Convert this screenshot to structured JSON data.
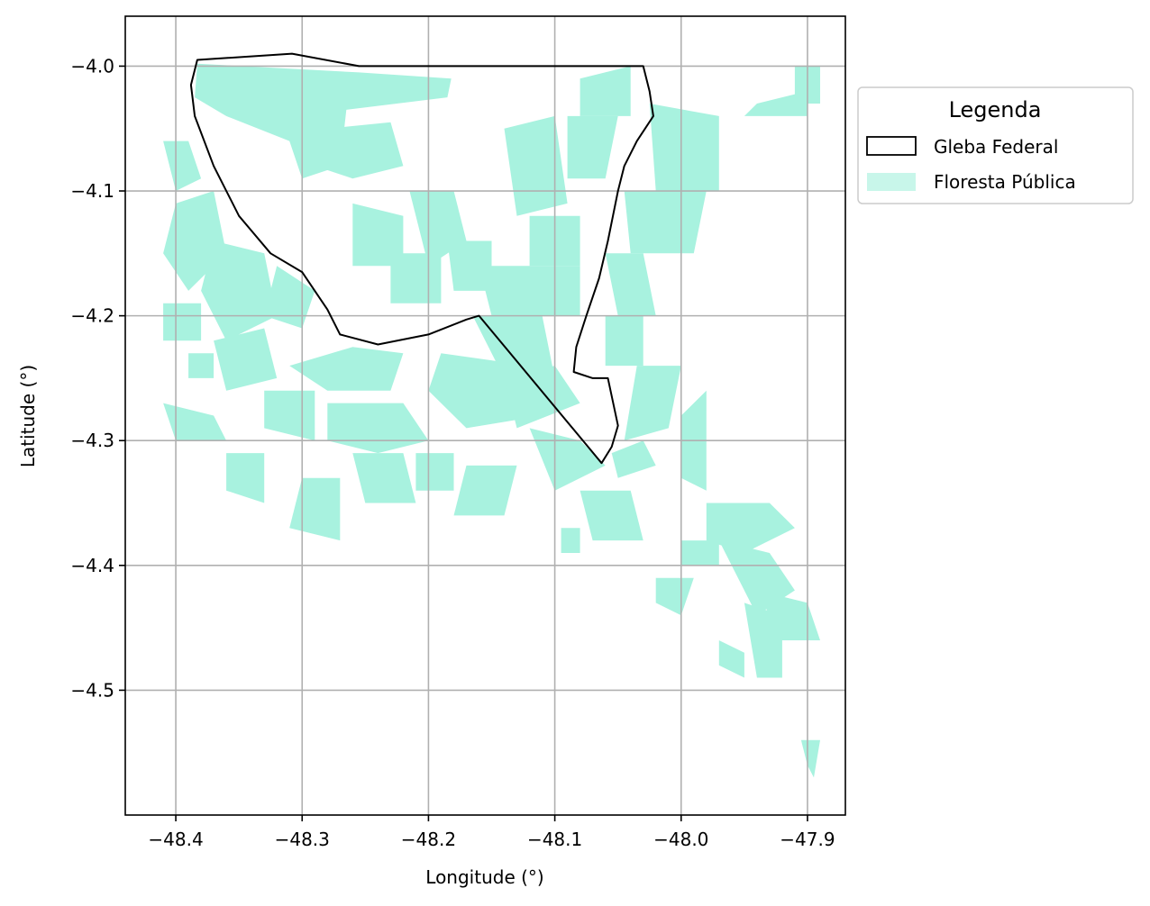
{
  "chart_data": {
    "type": "map",
    "xlabel": "Longitude (°)",
    "ylabel": "Latitude (°)",
    "xlim": [
      -48.44,
      -47.87
    ],
    "ylim": [
      -4.6,
      -3.96
    ],
    "x_ticks": [
      -48.4,
      -48.3,
      -48.2,
      -48.1,
      -48.0,
      -47.9
    ],
    "x_tick_labels": [
      "−48.4",
      "−48.3",
      "−48.2",
      "−48.1",
      "−48.0",
      "−47.9"
    ],
    "y_ticks": [
      -4.0,
      -4.1,
      -4.2,
      -4.3,
      -4.4,
      -4.5
    ],
    "y_tick_labels": [
      "−4.0",
      "−4.1",
      "−4.2",
      "−4.3",
      "−4.4",
      "−4.5"
    ],
    "grid": true,
    "legend": {
      "title": "Legenda",
      "placement": "outside-right-top",
      "entries": [
        {
          "label": "Gleba Federal",
          "style": "outline",
          "edge_color": "#000000",
          "fill": "none"
        },
        {
          "label": "Floresta Pública",
          "style": "fill",
          "fill": "#a8f2df"
        }
      ]
    },
    "colors": {
      "forest": "#a8f2df",
      "boundary": "#000000",
      "grid": "#b0b0b0"
    },
    "gleba_federal": [
      [
        -48.383,
        -3.995
      ],
      [
        -48.308,
        -3.99
      ],
      [
        -48.255,
        -4.0
      ],
      [
        -48.03,
        -4.0
      ],
      [
        -48.025,
        -4.02
      ],
      [
        -48.022,
        -4.04
      ],
      [
        -48.035,
        -4.06
      ],
      [
        -48.045,
        -4.08
      ],
      [
        -48.05,
        -4.1
      ],
      [
        -48.058,
        -4.14
      ],
      [
        -48.065,
        -4.17
      ],
      [
        -48.075,
        -4.2
      ],
      [
        -48.083,
        -4.225
      ],
      [
        -48.085,
        -4.245
      ],
      [
        -48.07,
        -4.25
      ],
      [
        -48.058,
        -4.25
      ],
      [
        -48.05,
        -4.288
      ],
      [
        -48.055,
        -4.305
      ],
      [
        -48.063,
        -4.318
      ],
      [
        -48.16,
        -4.2
      ],
      [
        -48.17,
        -4.203
      ],
      [
        -48.2,
        -4.215
      ],
      [
        -48.24,
        -4.223
      ],
      [
        -48.27,
        -4.215
      ],
      [
        -48.28,
        -4.195
      ],
      [
        -48.3,
        -4.165
      ],
      [
        -48.325,
        -4.15
      ],
      [
        -48.35,
        -4.12
      ],
      [
        -48.37,
        -4.08
      ],
      [
        -48.385,
        -4.04
      ],
      [
        -48.388,
        -4.015
      ],
      [
        -48.383,
        -3.995
      ]
    ],
    "floresta_publica": [
      [
        [
          -48.383,
          -3.998
        ],
        [
          -48.255,
          -4.005
        ],
        [
          -48.182,
          -4.01
        ],
        [
          -48.185,
          -4.025
        ],
        [
          -48.265,
          -4.035
        ],
        [
          -48.27,
          -4.08
        ],
        [
          -48.3,
          -4.09
        ],
        [
          -48.31,
          -4.06
        ],
        [
          -48.36,
          -4.04
        ],
        [
          -48.385,
          -4.025
        ]
      ],
      [
        [
          -48.28,
          -4.05
        ],
        [
          -48.23,
          -4.045
        ],
        [
          -48.22,
          -4.08
        ],
        [
          -48.26,
          -4.09
        ],
        [
          -48.29,
          -4.08
        ]
      ],
      [
        [
          -48.41,
          -4.06
        ],
        [
          -48.39,
          -4.06
        ],
        [
          -48.38,
          -4.09
        ],
        [
          -48.4,
          -4.1
        ]
      ],
      [
        [
          -48.4,
          -4.11
        ],
        [
          -48.37,
          -4.1
        ],
        [
          -48.36,
          -4.15
        ],
        [
          -48.39,
          -4.18
        ],
        [
          -48.41,
          -4.15
        ]
      ],
      [
        [
          -48.37,
          -4.14
        ],
        [
          -48.33,
          -4.15
        ],
        [
          -48.32,
          -4.2
        ],
        [
          -48.36,
          -4.22
        ],
        [
          -48.38,
          -4.18
        ]
      ],
      [
        [
          -48.41,
          -4.19
        ],
        [
          -48.38,
          -4.19
        ],
        [
          -48.38,
          -4.22
        ],
        [
          -48.41,
          -4.22
        ]
      ],
      [
        [
          -48.32,
          -4.16
        ],
        [
          -48.29,
          -4.18
        ],
        [
          -48.3,
          -4.21
        ],
        [
          -48.33,
          -4.2
        ]
      ],
      [
        [
          -48.37,
          -4.22
        ],
        [
          -48.33,
          -4.21
        ],
        [
          -48.32,
          -4.25
        ],
        [
          -48.36,
          -4.26
        ]
      ],
      [
        [
          -48.39,
          -4.23
        ],
        [
          -48.37,
          -4.23
        ],
        [
          -48.37,
          -4.25
        ],
        [
          -48.39,
          -4.25
        ]
      ],
      [
        [
          -48.33,
          -4.26
        ],
        [
          -48.29,
          -4.26
        ],
        [
          -48.29,
          -4.3
        ],
        [
          -48.33,
          -4.29
        ]
      ],
      [
        [
          -48.41,
          -4.27
        ],
        [
          -48.37,
          -4.28
        ],
        [
          -48.36,
          -4.3
        ],
        [
          -48.4,
          -4.3
        ]
      ],
      [
        [
          -48.36,
          -4.31
        ],
        [
          -48.33,
          -4.31
        ],
        [
          -48.33,
          -4.35
        ],
        [
          -48.36,
          -4.34
        ]
      ],
      [
        [
          -48.3,
          -4.33
        ],
        [
          -48.27,
          -4.33
        ],
        [
          -48.27,
          -4.38
        ],
        [
          -48.31,
          -4.37
        ]
      ],
      [
        [
          -48.31,
          -4.24
        ],
        [
          -48.26,
          -4.225
        ],
        [
          -48.22,
          -4.23
        ],
        [
          -48.23,
          -4.26
        ],
        [
          -48.28,
          -4.26
        ]
      ],
      [
        [
          -48.28,
          -4.27
        ],
        [
          -48.22,
          -4.27
        ],
        [
          -48.2,
          -4.3
        ],
        [
          -48.24,
          -4.31
        ],
        [
          -48.28,
          -4.3
        ]
      ],
      [
        [
          -48.26,
          -4.31
        ],
        [
          -48.22,
          -4.31
        ],
        [
          -48.21,
          -4.35
        ],
        [
          -48.25,
          -4.35
        ]
      ],
      [
        [
          -48.21,
          -4.31
        ],
        [
          -48.18,
          -4.31
        ],
        [
          -48.18,
          -4.34
        ],
        [
          -48.21,
          -4.34
        ]
      ],
      [
        [
          -48.19,
          -4.23
        ],
        [
          -48.12,
          -4.24
        ],
        [
          -48.11,
          -4.28
        ],
        [
          -48.17,
          -4.29
        ],
        [
          -48.2,
          -4.26
        ]
      ],
      [
        [
          -48.16,
          -4.16
        ],
        [
          -48.08,
          -4.16
        ],
        [
          -48.08,
          -4.2
        ],
        [
          -48.15,
          -4.2
        ]
      ],
      [
        [
          -48.165,
          -4.2
        ],
        [
          -48.11,
          -4.2
        ],
        [
          -48.1,
          -4.25
        ],
        [
          -48.14,
          -4.25
        ]
      ],
      [
        [
          -48.14,
          -4.25
        ],
        [
          -48.1,
          -4.24
        ],
        [
          -48.08,
          -4.27
        ],
        [
          -48.13,
          -4.29
        ]
      ],
      [
        [
          -48.12,
          -4.29
        ],
        [
          -48.08,
          -4.3
        ],
        [
          -48.06,
          -4.32
        ],
        [
          -48.1,
          -4.34
        ]
      ],
      [
        [
          -48.17,
          -4.32
        ],
        [
          -48.13,
          -4.32
        ],
        [
          -48.14,
          -4.36
        ],
        [
          -48.18,
          -4.36
        ]
      ],
      [
        [
          -48.26,
          -4.11
        ],
        [
          -48.22,
          -4.12
        ],
        [
          -48.22,
          -4.16
        ],
        [
          -48.26,
          -4.16
        ]
      ],
      [
        [
          -48.215,
          -4.1
        ],
        [
          -48.18,
          -4.1
        ],
        [
          -48.17,
          -4.14
        ],
        [
          -48.2,
          -4.16
        ]
      ],
      [
        [
          -48.23,
          -4.15
        ],
        [
          -48.19,
          -4.15
        ],
        [
          -48.19,
          -4.19
        ],
        [
          -48.23,
          -4.19
        ]
      ],
      [
        [
          -48.185,
          -4.14
        ],
        [
          -48.15,
          -4.14
        ],
        [
          -48.15,
          -4.18
        ],
        [
          -48.18,
          -4.18
        ]
      ],
      [
        [
          -48.14,
          -4.05
        ],
        [
          -48.1,
          -4.04
        ],
        [
          -48.09,
          -4.11
        ],
        [
          -48.13,
          -4.12
        ]
      ],
      [
        [
          -48.09,
          -4.04
        ],
        [
          -48.05,
          -4.04
        ],
        [
          -48.06,
          -4.09
        ],
        [
          -48.09,
          -4.09
        ]
      ],
      [
        [
          -48.12,
          -4.12
        ],
        [
          -48.08,
          -4.12
        ],
        [
          -48.08,
          -4.16
        ],
        [
          -48.12,
          -4.16
        ]
      ],
      [
        [
          -48.08,
          -4.01
        ],
        [
          -48.04,
          -4.0
        ],
        [
          -48.04,
          -4.04
        ],
        [
          -48.08,
          -4.04
        ]
      ],
      [
        [
          -48.025,
          -4.03
        ],
        [
          -47.97,
          -4.04
        ],
        [
          -47.97,
          -4.1
        ],
        [
          -48.02,
          -4.1
        ]
      ],
      [
        [
          -48.045,
          -4.1
        ],
        [
          -47.98,
          -4.1
        ],
        [
          -47.99,
          -4.15
        ],
        [
          -48.04,
          -4.15
        ]
      ],
      [
        [
          -48.06,
          -4.15
        ],
        [
          -48.03,
          -4.15
        ],
        [
          -48.02,
          -4.2
        ],
        [
          -48.05,
          -4.2
        ]
      ],
      [
        [
          -48.06,
          -4.2
        ],
        [
          -48.03,
          -4.2
        ],
        [
          -48.03,
          -4.24
        ],
        [
          -48.06,
          -4.24
        ]
      ],
      [
        [
          -48.035,
          -4.24
        ],
        [
          -48.0,
          -4.24
        ],
        [
          -48.01,
          -4.29
        ],
        [
          -48.045,
          -4.3
        ]
      ],
      [
        [
          -48.0,
          -4.28
        ],
        [
          -47.98,
          -4.26
        ],
        [
          -47.98,
          -4.34
        ],
        [
          -48.0,
          -4.33
        ]
      ],
      [
        [
          -48.055,
          -4.31
        ],
        [
          -48.03,
          -4.3
        ],
        [
          -48.02,
          -4.32
        ],
        [
          -48.05,
          -4.33
        ]
      ],
      [
        [
          -47.91,
          -4.0
        ],
        [
          -47.89,
          -4.0
        ],
        [
          -47.89,
          -4.03
        ],
        [
          -47.91,
          -4.03
        ]
      ],
      [
        [
          -47.94,
          -4.03
        ],
        [
          -47.9,
          -4.02
        ],
        [
          -47.9,
          -4.04
        ],
        [
          -47.95,
          -4.04
        ]
      ],
      [
        [
          -48.08,
          -4.34
        ],
        [
          -48.04,
          -4.34
        ],
        [
          -48.03,
          -4.38
        ],
        [
          -48.07,
          -4.38
        ]
      ],
      [
        [
          -48.095,
          -4.37
        ],
        [
          -48.08,
          -4.37
        ],
        [
          -48.08,
          -4.39
        ],
        [
          -48.095,
          -4.39
        ]
      ],
      [
        [
          -47.98,
          -4.35
        ],
        [
          -47.93,
          -4.35
        ],
        [
          -47.91,
          -4.37
        ],
        [
          -47.95,
          -4.39
        ],
        [
          -47.98,
          -4.38
        ]
      ],
      [
        [
          -47.97,
          -4.38
        ],
        [
          -47.93,
          -4.39
        ],
        [
          -47.91,
          -4.42
        ],
        [
          -47.94,
          -4.44
        ]
      ],
      [
        [
          -47.94,
          -4.42
        ],
        [
          -47.9,
          -4.43
        ],
        [
          -47.89,
          -4.46
        ],
        [
          -47.92,
          -4.46
        ]
      ],
      [
        [
          -47.95,
          -4.43
        ],
        [
          -47.92,
          -4.44
        ],
        [
          -47.92,
          -4.49
        ],
        [
          -47.94,
          -4.49
        ]
      ],
      [
        [
          -47.97,
          -4.46
        ],
        [
          -47.95,
          -4.47
        ],
        [
          -47.95,
          -4.49
        ],
        [
          -47.97,
          -4.48
        ]
      ],
      [
        [
          -48.0,
          -4.38
        ],
        [
          -47.97,
          -4.38
        ],
        [
          -47.97,
          -4.4
        ],
        [
          -48.0,
          -4.4
        ]
      ],
      [
        [
          -48.02,
          -4.41
        ],
        [
          -47.99,
          -4.41
        ],
        [
          -48.0,
          -4.44
        ],
        [
          -48.02,
          -4.43
        ]
      ],
      [
        [
          -47.905,
          -4.54
        ],
        [
          -47.89,
          -4.54
        ],
        [
          -47.895,
          -4.57
        ],
        [
          -47.9,
          -4.56
        ]
      ]
    ]
  }
}
